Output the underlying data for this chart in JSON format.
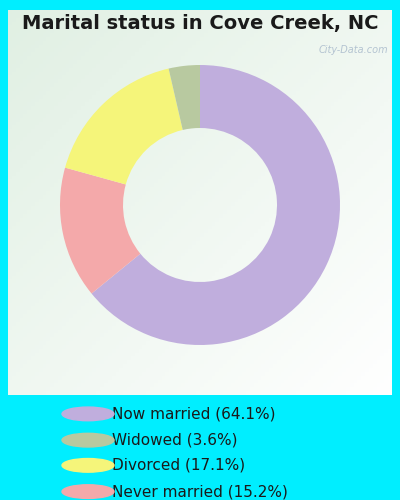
{
  "title": "Marital status in Cove Creek, NC",
  "percentages": [
    64.1,
    15.2,
    17.1,
    3.6
  ],
  "colors": [
    "#c0aedd",
    "#f4a9aa",
    "#f5f57a",
    "#b8c9a0"
  ],
  "legend_labels": [
    "Now married (64.1%)",
    "Widowed (3.6%)",
    "Divorced (17.1%)",
    "Never married (15.2%)"
  ],
  "legend_colors": [
    "#c0aedd",
    "#b8c9a0",
    "#f5f57a",
    "#f4a9aa"
  ],
  "bg_color_outer": "#00eeff",
  "bg_color_inner_tl": "#d8ede0",
  "bg_color_inner_br": "#ffffff",
  "donut_width": 0.45,
  "title_fontsize": 14,
  "legend_fontsize": 11,
  "watermark": "City-Data.com"
}
